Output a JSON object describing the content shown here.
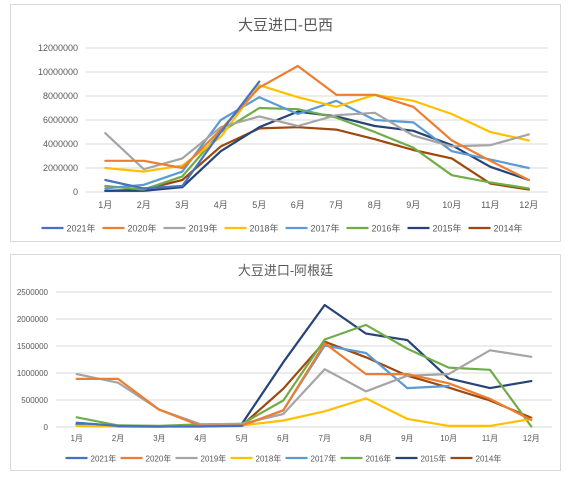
{
  "chart_data": [
    {
      "type": "line",
      "title": "大豆进口-巴西",
      "categories": [
        "1月",
        "2月",
        "3月",
        "4月",
        "5月",
        "6月",
        "7月",
        "8月",
        "9月",
        "10月",
        "11月",
        "12月"
      ],
      "ylim": [
        0,
        12000000
      ],
      "yticks": [
        "0",
        "2000000",
        "4000000",
        "6000000",
        "8000000",
        "10000000",
        "12000000"
      ],
      "grid": true,
      "legend_position": "bottom",
      "series": [
        {
          "name": "2021年",
          "color": "#4472C4",
          "values": [
            1000000,
            300000,
            500000,
            5000000,
            9200000,
            null,
            null,
            null,
            null,
            null,
            null,
            null
          ]
        },
        {
          "name": "2020年",
          "color": "#ED7D31",
          "values": [
            2600000,
            2600000,
            2000000,
            5200000,
            8700000,
            10500000,
            8100000,
            8100000,
            7100000,
            4300000,
            2600000,
            1000000
          ]
        },
        {
          "name": "2019年",
          "color": "#A5A5A5",
          "values": [
            4900000,
            1900000,
            2800000,
            5400000,
            6300000,
            5500000,
            6400000,
            6600000,
            4700000,
            3800000,
            3900000,
            4800000
          ]
        },
        {
          "name": "2018年",
          "color": "#FFC000",
          "values": [
            2000000,
            1700000,
            2200000,
            4600000,
            8900000,
            7900000,
            7100000,
            8100000,
            7600000,
            6500000,
            5000000,
            4300000
          ]
        },
        {
          "name": "2017年",
          "color": "#5B9BD5",
          "values": [
            300000,
            600000,
            1700000,
            6000000,
            7900000,
            6500000,
            7600000,
            6000000,
            5800000,
            3400000,
            2700000,
            2000000
          ]
        },
        {
          "name": "2016年",
          "color": "#70AD47",
          "values": [
            500000,
            200000,
            1300000,
            5000000,
            7000000,
            6900000,
            6200000,
            5000000,
            3700000,
            1400000,
            800000,
            300000
          ]
        },
        {
          "name": "2015年",
          "color": "#264478",
          "values": [
            100000,
            100000,
            400000,
            3400000,
            5400000,
            6700000,
            6300000,
            5500000,
            5100000,
            3900000,
            2100000,
            1000000
          ]
        },
        {
          "name": "2014年",
          "color": "#9E480E",
          "values": [
            100000,
            200000,
            1000000,
            3800000,
            5300000,
            5400000,
            5200000,
            4400000,
            3500000,
            2800000,
            700000,
            200000
          ]
        }
      ]
    },
    {
      "type": "line",
      "title": "大豆进口-阿根廷",
      "categories": [
        "1月",
        "2月",
        "3月",
        "4月",
        "5月",
        "6月",
        "7月",
        "8月",
        "9月",
        "10月",
        "11月",
        "12月"
      ],
      "ylim": [
        0,
        2500000
      ],
      "yticks": [
        "0",
        "500000",
        "1000000",
        "1500000",
        "2000000",
        "2500000"
      ],
      "grid": true,
      "legend_position": "bottom",
      "series": [
        {
          "name": "2021年",
          "color": "#4472C4",
          "values": [
            80000,
            20000,
            10000,
            10000,
            20000,
            null,
            null,
            null,
            null,
            null,
            null,
            null
          ]
        },
        {
          "name": "2020年",
          "color": "#ED7D31",
          "values": [
            890000,
            890000,
            320000,
            20000,
            30000,
            310000,
            1550000,
            980000,
            980000,
            810000,
            520000,
            130000
          ]
        },
        {
          "name": "2019年",
          "color": "#A5A5A5",
          "values": [
            980000,
            820000,
            320000,
            50000,
            60000,
            240000,
            1070000,
            660000,
            950000,
            980000,
            1420000,
            1300000
          ]
        },
        {
          "name": "2018年",
          "color": "#FFC000",
          "values": [
            20000,
            10000,
            10000,
            10000,
            30000,
            120000,
            290000,
            530000,
            150000,
            20000,
            20000,
            150000
          ]
        },
        {
          "name": "2017年",
          "color": "#5B9BD5",
          "values": [
            30000,
            10000,
            10000,
            20000,
            20000,
            310000,
            1510000,
            1370000,
            720000,
            760000,
            null,
            null
          ]
        },
        {
          "name": "2016年",
          "color": "#70AD47",
          "values": [
            180000,
            30000,
            20000,
            50000,
            60000,
            490000,
            1620000,
            1890000,
            1450000,
            1100000,
            1060000,
            10000
          ]
        },
        {
          "name": "2015年",
          "color": "#264478",
          "values": [
            50000,
            10000,
            10000,
            30000,
            60000,
            1200000,
            2260000,
            1730000,
            1610000,
            900000,
            720000,
            850000
          ]
        },
        {
          "name": "2014年",
          "color": "#9E480E",
          "values": [
            60000,
            10000,
            10000,
            20000,
            30000,
            710000,
            1580000,
            1290000,
            950000,
            730000,
            490000,
            170000
          ]
        }
      ]
    }
  ]
}
